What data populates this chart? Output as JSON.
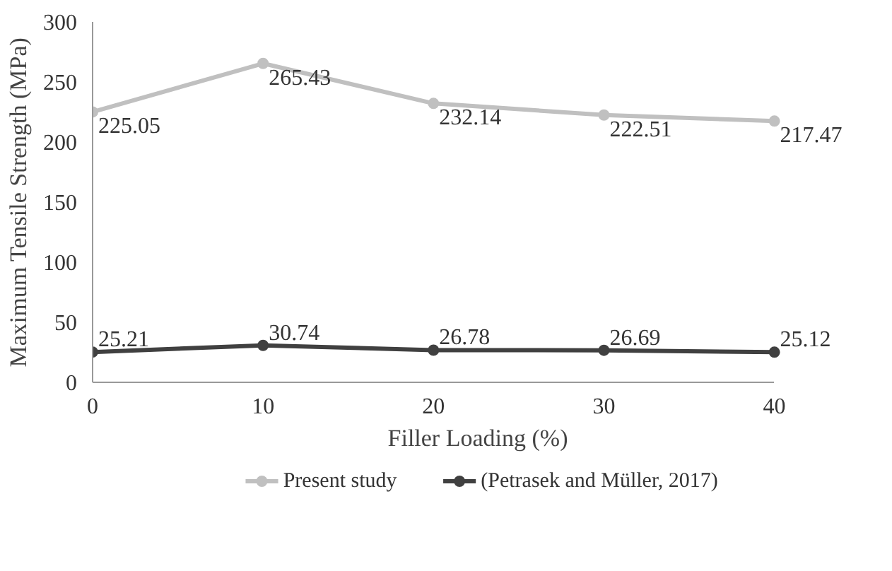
{
  "chart_data": {
    "type": "line",
    "xlabel": "Filler Loading (%)",
    "ylabel": "Maximum Tensile Strength (MPa)",
    "x": [
      0,
      10,
      20,
      30,
      40
    ],
    "series": [
      {
        "name": "Present study",
        "color": "#c0c0c0",
        "values": [
          225.05,
          265.43,
          232.14,
          222.51,
          217.47
        ]
      },
      {
        "name": "(Petrasek and Müller, 2017)",
        "color": "#404040",
        "values": [
          25.21,
          30.74,
          26.78,
          26.69,
          25.12
        ]
      }
    ],
    "xlim": [
      0,
      40
    ],
    "ylim": [
      0,
      300
    ],
    "xticks": [
      0,
      10,
      20,
      30,
      40
    ],
    "yticks": [
      0,
      50,
      100,
      150,
      200,
      250,
      300
    ],
    "data_labels": true,
    "grid": false,
    "legend": "bottom",
    "marker": "circle",
    "line_style": "solid"
  }
}
